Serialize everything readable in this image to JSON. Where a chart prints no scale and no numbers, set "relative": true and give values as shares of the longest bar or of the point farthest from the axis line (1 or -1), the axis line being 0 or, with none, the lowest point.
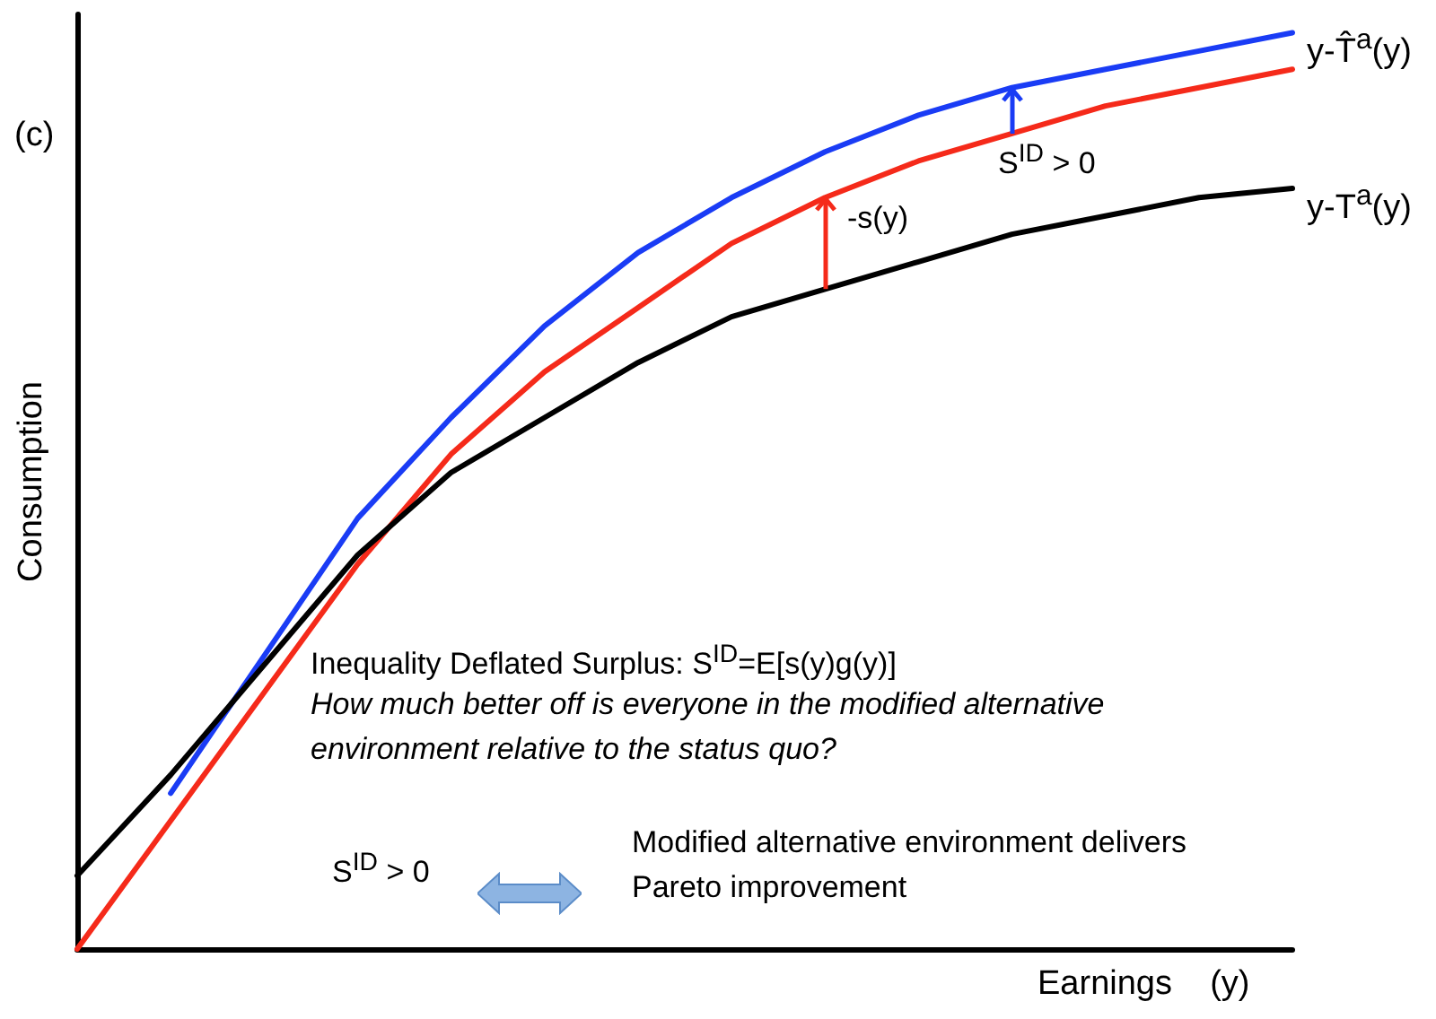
{
  "chart_data": {
    "type": "line",
    "relative": true,
    "xlabel": "Earnings    (y)",
    "ylabel": "Consumption",
    "categories": [
      null,
      null,
      null,
      null,
      null,
      null,
      null,
      null,
      null,
      null,
      null,
      null,
      null,
      null
    ],
    "series": [
      {
        "name": "y-T̂$^{a}$(y)",
        "color": "#1a3cf5",
        "values": [
          null,
          0.17,
          0.32,
          0.47,
          0.58,
          0.68,
          0.76,
          0.82,
          0.87,
          0.91,
          0.94,
          0.96,
          0.98,
          1
        ]
      },
      {
        "color": "#f52a1a",
        "values": [
          0,
          0.14,
          0.28,
          0.42,
          0.54,
          0.63,
          0.7,
          0.77,
          0.82,
          0.86,
          0.89,
          0.92,
          0.94,
          0.96
        ]
      },
      {
        "name": "y-T$^{a}$(y)",
        "color": "#000000",
        "values": [
          0.08,
          0.19,
          0.31,
          0.43,
          0.52,
          0.58,
          0.64,
          0.69,
          0.72,
          0.75,
          0.78,
          0.8,
          0.82,
          0.83
        ]
      }
    ],
    "annotations": [
      "(c)",
      "-s(y)",
      "S$^{ID}$ > 0",
      "Inequality Deflated Surplus: S$^{ID}$=E[s(y)g(y)]",
      "How much better off is everyone in the modified alternative environment relative to the status quo?",
      "S$^{ID}$ > 0",
      "Modified alternative environment delivers Pareto improvement"
    ],
    "marker": "none",
    "line_style": "solid",
    "grid": false,
    "legend": false
  }
}
